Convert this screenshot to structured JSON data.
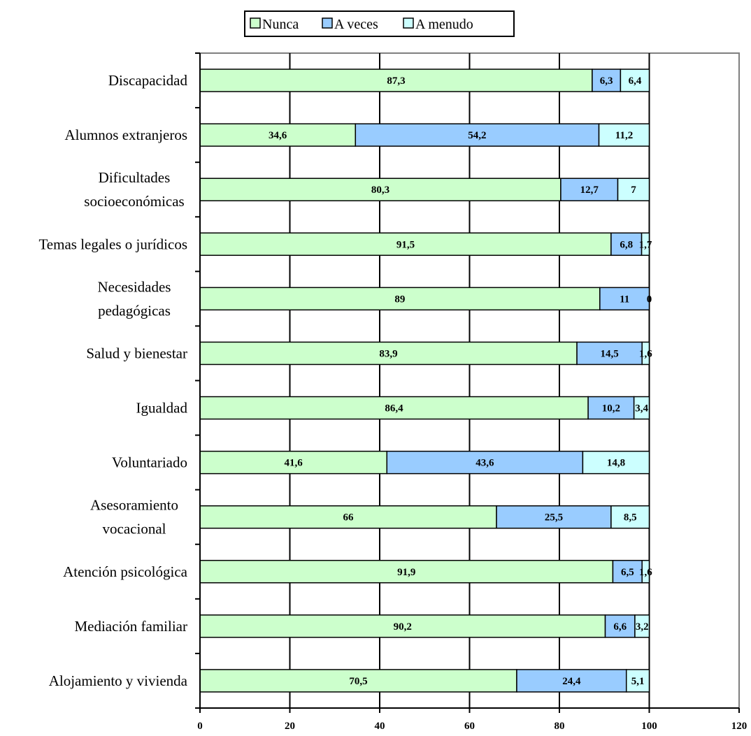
{
  "chart_data": {
    "type": "bar",
    "orientation": "horizontal",
    "stacked": true,
    "categories": [
      "Discapacidad",
      "Alumnos extranjeros",
      "Dificultades socioeconómicas",
      "Temas legales o jurídicos",
      "Necesidades pedagógicas",
      "Salud y bienestar",
      "Igualdad",
      "Voluntariado",
      "Asesoramiento vocacional",
      "Atención psicológica",
      "Mediación familiar",
      "Alojamiento y vivienda"
    ],
    "category_lines": [
      [
        "Discapacidad"
      ],
      [
        "Alumnos extranjeros"
      ],
      [
        "Dificultades",
        "socioeconómicas"
      ],
      [
        "Temas legales o jurídicos"
      ],
      [
        "Necesidades",
        "pedagógicas"
      ],
      [
        "Salud y bienestar"
      ],
      [
        "Igualdad"
      ],
      [
        "Voluntariado"
      ],
      [
        "Asesoramiento",
        "vocacional"
      ],
      [
        "Atención psicológica"
      ],
      [
        "Mediación familiar"
      ],
      [
        "Alojamiento y vivienda"
      ]
    ],
    "series": [
      {
        "name": "Nunca",
        "color": "#ccffcc",
        "values": [
          87.3,
          34.6,
          80.3,
          91.5,
          89,
          83.9,
          86.4,
          41.6,
          66,
          91.9,
          90.2,
          70.5
        ]
      },
      {
        "name": "A veces",
        "color": "#99ccff",
        "values": [
          6.3,
          54.2,
          12.7,
          6.8,
          11,
          14.5,
          10.2,
          43.6,
          25.5,
          6.5,
          6.6,
          24.4
        ]
      },
      {
        "name": "A menudo",
        "color": "#ccffff",
        "values": [
          6.4,
          11.2,
          7,
          1.7,
          0,
          1.6,
          3.4,
          14.8,
          8.5,
          1.6,
          3.2,
          5.1
        ]
      }
    ],
    "data_labels": [
      [
        "87,3",
        "6,3",
        "6,4"
      ],
      [
        "34,6",
        "54,2",
        "11,2"
      ],
      [
        "80,3",
        "12,7",
        "7"
      ],
      [
        "91,5",
        "6,8",
        "1,7"
      ],
      [
        "89",
        "11",
        "0"
      ],
      [
        "83,9",
        "14,5",
        "1,6"
      ],
      [
        "86,4",
        "10,2",
        "3,4"
      ],
      [
        "41,6",
        "43,6",
        "14,8"
      ],
      [
        "66",
        "25,5",
        "8,5"
      ],
      [
        "91,9",
        "6,5",
        "1,6"
      ],
      [
        "90,2",
        "6,6",
        "3,2"
      ],
      [
        "70,5",
        "24,4",
        "5,1"
      ]
    ],
    "xlim": [
      0,
      120
    ],
    "x_ticks": [
      0,
      20,
      40,
      60,
      80,
      100,
      120
    ],
    "x_tick_labels": [
      "0",
      "20",
      "40",
      "60",
      "80",
      "100",
      "120"
    ],
    "grid": "vertical",
    "legend_position": "top-center",
    "title": "",
    "xlabel": "",
    "ylabel": ""
  }
}
